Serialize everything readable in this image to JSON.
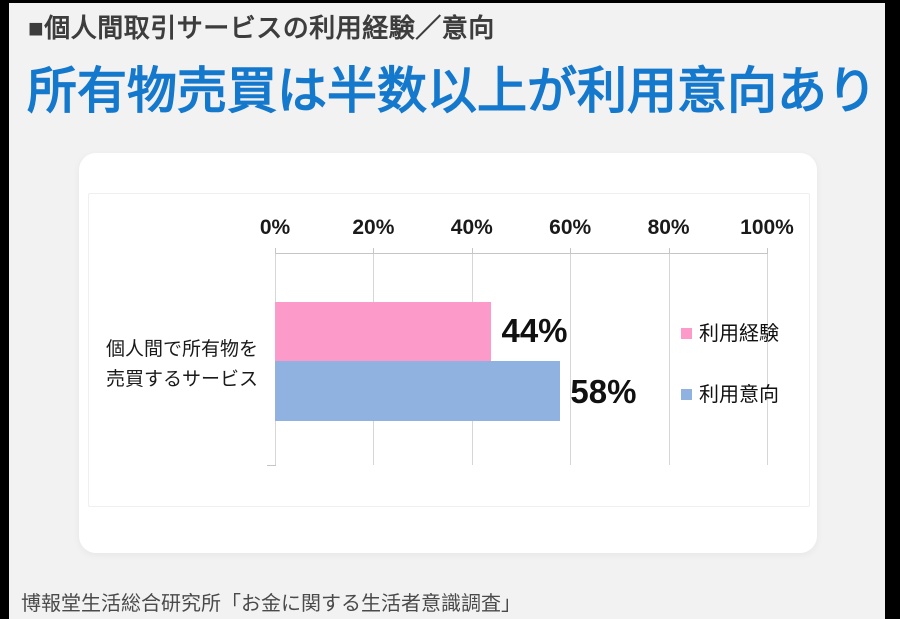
{
  "page": {
    "background_color": "#f2f2f2",
    "frame_color": "#000000",
    "card_color": "#ffffff"
  },
  "header": {
    "section_title": "■個人間取引サービスの利用経験／意向"
  },
  "title": {
    "text": "所有物売買は半数以上が利用意向あり",
    "color": "#1478cc"
  },
  "chart_data": {
    "type": "bar",
    "orientation": "horizontal",
    "title": "",
    "category": "個人間で所有物を売買するサービス",
    "category_lines": [
      "個人間で所有物を",
      "売買するサービス"
    ],
    "series": [
      {
        "name": "利用経験",
        "value": 44,
        "label": "44%",
        "color": "#fc9aca"
      },
      {
        "name": "利用意向",
        "value": 58,
        "label": "58%",
        "color": "#8fb2e0"
      }
    ],
    "axis": {
      "min": 0,
      "max": 100,
      "ticks": [
        0,
        20,
        40,
        60,
        80,
        100
      ],
      "tick_labels": [
        "0%",
        "20%",
        "40%",
        "60%",
        "80%",
        "100%"
      ],
      "position": "top",
      "grid": true
    },
    "legend": {
      "position": "right",
      "entries": [
        "利用経験",
        "利用意向"
      ]
    }
  },
  "footer": {
    "source": "博報堂生活総合研究所「お金に関する生活者意識調査」"
  }
}
